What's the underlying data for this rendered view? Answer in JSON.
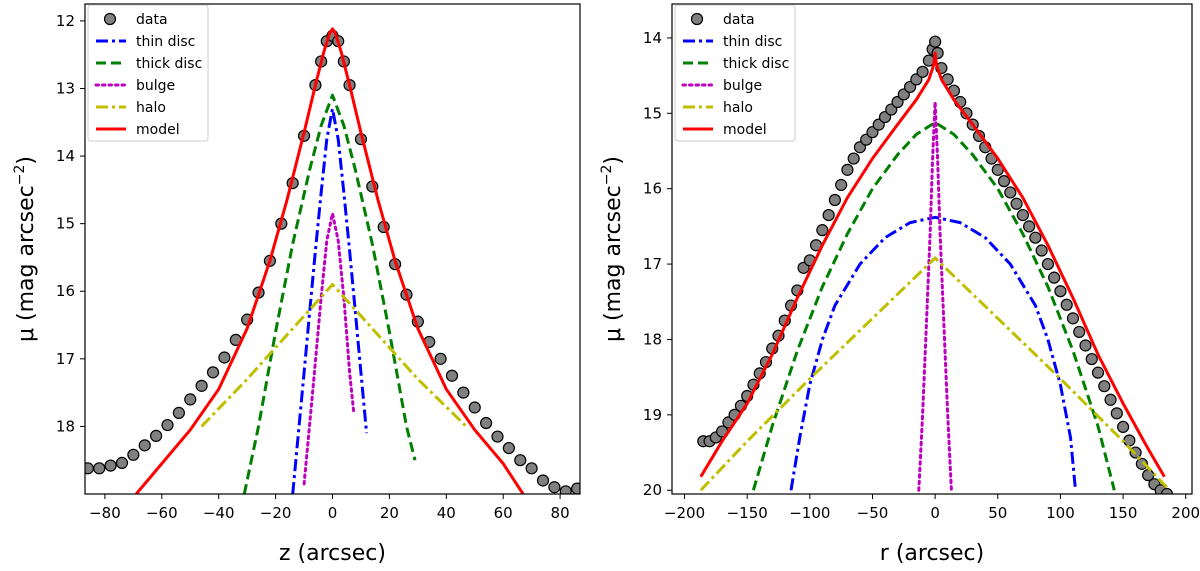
{
  "chart_data": [
    {
      "type": "line",
      "xlabel": "z (arcsec)",
      "ylabel": "μ (mag arcsec⁻²)",
      "ylabel_main": "μ (mag arcsec",
      "ylabel_sup": "−2",
      "ylabel_close": ")",
      "xlim": [
        -87,
        87
      ],
      "ylim": [
        19.0,
        11.75
      ],
      "y_inverted": true,
      "xticks": [
        -80,
        -60,
        -40,
        -20,
        0,
        20,
        40,
        60,
        80
      ],
      "yticks": [
        12,
        13,
        14,
        15,
        16,
        17,
        18
      ],
      "legend_position": "top-left",
      "legend": [
        "data",
        "thin disc",
        "thick disc",
        "bulge",
        "halo",
        "model"
      ],
      "series": [
        {
          "name": "data",
          "style": "scatter",
          "color": "#808080",
          "x": [
            -86,
            -82,
            -78,
            -74,
            -70,
            -66,
            -62,
            -58,
            -54,
            -50,
            -46,
            -42,
            -38,
            -34,
            -30,
            -26,
            -22,
            -18,
            -14,
            -10,
            -6,
            -4,
            -2,
            0,
            2,
            4,
            6,
            10,
            14,
            18,
            22,
            26,
            30,
            34,
            38,
            42,
            46,
            50,
            54,
            58,
            62,
            66,
            70,
            74,
            78,
            82,
            86
          ],
          "y": [
            18.62,
            18.62,
            18.58,
            18.54,
            18.42,
            18.28,
            18.14,
            17.98,
            17.8,
            17.6,
            17.4,
            17.2,
            16.98,
            16.72,
            16.42,
            16.02,
            15.55,
            15.0,
            14.4,
            13.7,
            12.95,
            12.6,
            12.3,
            12.22,
            12.3,
            12.6,
            12.95,
            13.75,
            14.45,
            15.05,
            15.6,
            16.05,
            16.45,
            16.75,
            17.0,
            17.25,
            17.5,
            17.72,
            17.95,
            18.15,
            18.32,
            18.5,
            18.62,
            18.8,
            18.9,
            18.96,
            18.92
          ]
        },
        {
          "name": "thin disc",
          "style": "dashdot",
          "color": "#0000ff",
          "x": [
            -14,
            -12,
            -10,
            -8,
            -6,
            -4,
            -2,
            0,
            2,
            4,
            6,
            8,
            10,
            12
          ],
          "y": [
            19.0,
            18.1,
            17.2,
            16.3,
            15.4,
            14.55,
            13.75,
            13.3,
            13.75,
            14.55,
            15.4,
            16.3,
            17.2,
            18.1
          ]
        },
        {
          "name": "thick disc",
          "style": "dashed",
          "color": "#008000",
          "x": [
            -31,
            -26,
            -20,
            -14,
            -8,
            -4,
            0,
            4,
            8,
            14,
            20,
            26,
            29
          ],
          "y": [
            19.0,
            18.0,
            16.6,
            15.3,
            14.2,
            13.55,
            13.1,
            13.55,
            14.2,
            15.3,
            16.6,
            18.0,
            18.5
          ]
        },
        {
          "name": "bulge",
          "style": "dotted",
          "color": "#bf00bf",
          "x": [
            -10,
            -7,
            -4,
            -2,
            0,
            2,
            4,
            6,
            7.5
          ],
          "y": [
            18.85,
            17.5,
            16.1,
            15.25,
            14.85,
            15.25,
            16.1,
            17.2,
            17.8
          ]
        },
        {
          "name": "halo",
          "style": "dashdot",
          "color": "#bfbf00",
          "x": [
            -46,
            -30,
            -15,
            0,
            15,
            30,
            47
          ],
          "y": [
            18.0,
            17.3,
            16.6,
            15.9,
            16.6,
            17.3,
            18.0
          ]
        },
        {
          "name": "model",
          "style": "solid",
          "color": "#ff0000",
          "x": [
            -69,
            -60,
            -50,
            -40,
            -30,
            -22,
            -16,
            -10,
            -6,
            -3,
            -1,
            0,
            1,
            3,
            6,
            10,
            16,
            22,
            30,
            40,
            50,
            60,
            67
          ],
          "y": [
            19.0,
            18.55,
            18.05,
            17.45,
            16.55,
            15.55,
            14.65,
            13.65,
            12.95,
            12.45,
            12.18,
            12.12,
            12.18,
            12.45,
            12.95,
            13.65,
            14.65,
            15.55,
            16.55,
            17.45,
            18.05,
            18.55,
            19.0
          ]
        }
      ]
    },
    {
      "type": "line",
      "xlabel": "r (arcsec)",
      "ylabel": "μ (mag arcsec⁻²)",
      "ylabel_main": "μ (mag arcsec",
      "ylabel_sup": "−2",
      "ylabel_close": ")",
      "xlim": [
        -210,
        205
      ],
      "ylim": [
        20.05,
        13.55
      ],
      "y_inverted": true,
      "xticks": [
        -200,
        -150,
        -100,
        -50,
        0,
        50,
        100,
        150,
        200
      ],
      "yticks": [
        14,
        15,
        16,
        17,
        18,
        19,
        20
      ],
      "legend_position": "top-left",
      "legend": [
        "data",
        "thin disc",
        "thick disc",
        "bulge",
        "halo",
        "model"
      ],
      "series": [
        {
          "name": "data",
          "style": "scatter",
          "color": "#808080",
          "x": [
            -185,
            -180,
            -175,
            -170,
            -165,
            -160,
            -155,
            -150,
            -145,
            -140,
            -135,
            -130,
            -125,
            -120,
            -115,
            -110,
            -105,
            -100,
            -95,
            -90,
            -85,
            -80,
            -75,
            -70,
            -65,
            -60,
            -55,
            -50,
            -45,
            -40,
            -35,
            -30,
            -25,
            -20,
            -15,
            -10,
            -5,
            -2,
            0,
            2,
            5,
            10,
            15,
            20,
            25,
            30,
            35,
            40,
            45,
            50,
            55,
            60,
            65,
            70,
            75,
            80,
            85,
            90,
            95,
            100,
            105,
            110,
            115,
            120,
            125,
            130,
            135,
            140,
            145,
            150,
            155,
            160,
            165,
            170,
            175,
            180,
            185
          ],
          "y": [
            19.35,
            19.35,
            19.3,
            19.22,
            19.1,
            19.0,
            18.88,
            18.75,
            18.6,
            18.45,
            18.3,
            18.12,
            17.95,
            17.75,
            17.55,
            17.35,
            17.05,
            16.95,
            16.75,
            16.55,
            16.35,
            16.15,
            15.95,
            15.75,
            15.6,
            15.45,
            15.35,
            15.25,
            15.15,
            15.05,
            14.95,
            14.85,
            14.75,
            14.65,
            14.55,
            14.45,
            14.3,
            14.15,
            14.05,
            14.2,
            14.4,
            14.55,
            14.7,
            14.85,
            15.0,
            15.15,
            15.3,
            15.45,
            15.6,
            15.75,
            15.9,
            16.05,
            16.2,
            16.35,
            16.5,
            16.65,
            16.82,
            17.0,
            17.18,
            17.36,
            17.54,
            17.72,
            17.9,
            18.08,
            18.26,
            18.44,
            18.62,
            18.8,
            18.98,
            19.16,
            19.34,
            19.5,
            19.65,
            19.8,
            19.92,
            20.0,
            20.05
          ]
        },
        {
          "name": "thin disc",
          "style": "dashdot",
          "color": "#0000ff",
          "x": [
            -115,
            -108,
            -100,
            -90,
            -80,
            -60,
            -40,
            -20,
            0,
            20,
            40,
            60,
            80,
            90,
            100,
            108,
            112
          ],
          "y": [
            20.0,
            19.3,
            18.6,
            18.0,
            17.55,
            17.0,
            16.65,
            16.45,
            16.38,
            16.45,
            16.65,
            17.0,
            17.55,
            18.0,
            18.6,
            19.3,
            20.0
          ]
        },
        {
          "name": "thick disc",
          "style": "dashed",
          "color": "#008000",
          "x": [
            -145,
            -130,
            -110,
            -90,
            -70,
            -50,
            -30,
            -15,
            0,
            15,
            30,
            50,
            70,
            90,
            110,
            130,
            143
          ],
          "y": [
            20.0,
            19.15,
            18.15,
            17.3,
            16.6,
            16.0,
            15.55,
            15.28,
            15.12,
            15.28,
            15.55,
            16.0,
            16.6,
            17.3,
            18.15,
            19.15,
            20.0
          ]
        },
        {
          "name": "bulge",
          "style": "dotted",
          "color": "#bf00bf",
          "x": [
            -13,
            -10,
            -7,
            -4,
            -2,
            0,
            2,
            4,
            7,
            10,
            13
          ],
          "y": [
            20.0,
            19.0,
            17.8,
            16.6,
            15.6,
            14.85,
            15.6,
            16.6,
            17.8,
            19.0,
            20.0
          ]
        },
        {
          "name": "halo",
          "style": "dashdot",
          "color": "#bfbf00",
          "x": [
            -187,
            -150,
            -100,
            -50,
            0,
            50,
            100,
            150,
            187
          ],
          "y": [
            20.0,
            19.35,
            18.52,
            17.72,
            16.92,
            17.72,
            18.52,
            19.35,
            20.0
          ]
        },
        {
          "name": "model",
          "style": "solid",
          "color": "#ff0000",
          "x": [
            -187,
            -170,
            -150,
            -130,
            -110,
            -90,
            -70,
            -50,
            -30,
            -15,
            -5,
            -1,
            0,
            1,
            5,
            15,
            30,
            50,
            70,
            90,
            110,
            130,
            150,
            170,
            183
          ],
          "y": [
            19.82,
            19.35,
            18.85,
            18.2,
            17.45,
            16.75,
            16.12,
            15.6,
            15.15,
            14.82,
            14.55,
            14.35,
            14.2,
            14.35,
            14.55,
            14.82,
            15.15,
            15.6,
            16.12,
            16.75,
            17.45,
            18.2,
            18.85,
            19.45,
            19.82
          ]
        }
      ]
    }
  ]
}
